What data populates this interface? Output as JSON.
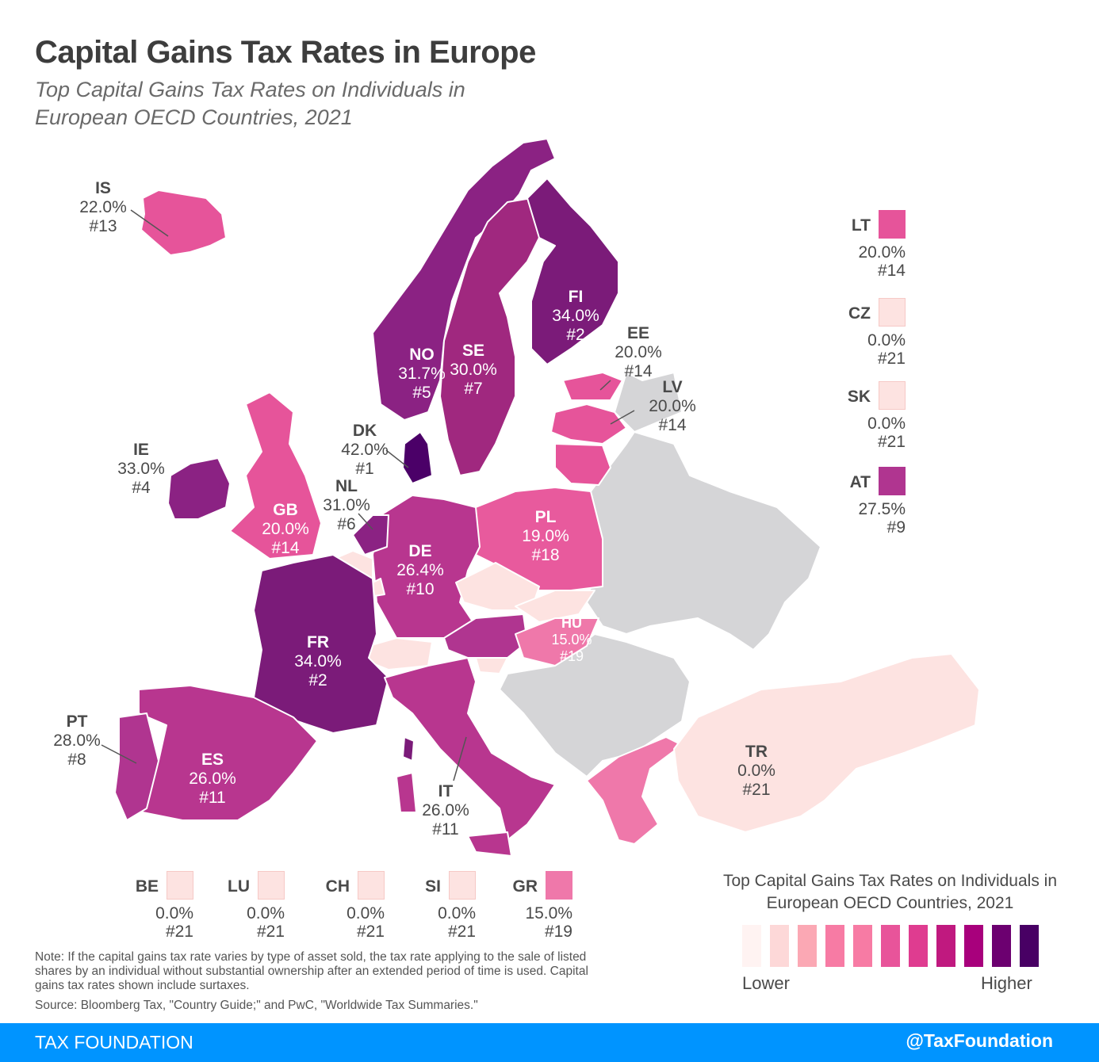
{
  "header": {
    "title": "Capital Gains Tax Rates in Europe",
    "subtitle": "Top Capital Gains Tax Rates on Individuals in European OECD Countries, 2021"
  },
  "colors": {
    "non_oecd": "#d5d5d7",
    "border": "#ffffff"
  },
  "countries": [
    {
      "code": "IS",
      "rate": "22.0%",
      "rank": "#13",
      "color": "#e6549a"
    },
    {
      "code": "NO",
      "rate": "31.7%",
      "rank": "#5",
      "color": "#8b2283"
    },
    {
      "code": "SE",
      "rate": "30.0%",
      "rank": "#7",
      "color": "#a0287f"
    },
    {
      "code": "FI",
      "rate": "34.0%",
      "rank": "#2",
      "color": "#7b1b79"
    },
    {
      "code": "EE",
      "rate": "20.0%",
      "rank": "#14",
      "color": "#e6549a"
    },
    {
      "code": "LV",
      "rate": "20.0%",
      "rank": "#14",
      "color": "#e6549a"
    },
    {
      "code": "DK",
      "rate": "42.0%",
      "rank": "#1",
      "color": "#4b0068"
    },
    {
      "code": "IE",
      "rate": "33.0%",
      "rank": "#4",
      "color": "#8b2283"
    },
    {
      "code": "NL",
      "rate": "31.0%",
      "rank": "#6",
      "color": "#8b2283"
    },
    {
      "code": "GB",
      "rate": "20.0%",
      "rank": "#14",
      "color": "#e6549a"
    },
    {
      "code": "PL",
      "rate": "19.0%",
      "rank": "#18",
      "color": "#e85a9d"
    },
    {
      "code": "DE",
      "rate": "26.4%",
      "rank": "#10",
      "color": "#b8368f"
    },
    {
      "code": "FR",
      "rate": "34.0%",
      "rank": "#2",
      "color": "#7b1b79"
    },
    {
      "code": "HU",
      "rate": "15.0%",
      "rank": "#19",
      "color": "#ef78aa"
    },
    {
      "code": "ES",
      "rate": "26.0%",
      "rank": "#11",
      "color": "#b8368f"
    },
    {
      "code": "PT",
      "rate": "28.0%",
      "rank": "#8",
      "color": "#b03590"
    },
    {
      "code": "IT",
      "rate": "26.0%",
      "rank": "#11",
      "color": "#b8368f"
    },
    {
      "code": "TR",
      "rate": "0.0%",
      "rank": "#21",
      "color": "#fde3e1"
    },
    {
      "code": "LT",
      "rate": "20.0%",
      "rank": "#14",
      "color": "#e6549a"
    },
    {
      "code": "CZ",
      "rate": "0.0%",
      "rank": "#21",
      "color": "#fde3e1"
    },
    {
      "code": "SK",
      "rate": "0.0%",
      "rank": "#21",
      "color": "#fde3e1"
    },
    {
      "code": "AT",
      "rate": "27.5%",
      "rank": "#9",
      "color": "#b03590"
    },
    {
      "code": "BE",
      "rate": "0.0%",
      "rank": "#21",
      "color": "#fde3e1"
    },
    {
      "code": "LU",
      "rate": "0.0%",
      "rank": "#21",
      "color": "#fde3e1"
    },
    {
      "code": "CH",
      "rate": "0.0%",
      "rank": "#21",
      "color": "#fde3e1"
    },
    {
      "code": "SI",
      "rate": "0.0%",
      "rank": "#21",
      "color": "#fde3e1"
    },
    {
      "code": "GR",
      "rate": "15.0%",
      "rank": "#19",
      "color": "#ef78aa"
    }
  ],
  "legend": {
    "title": "Top Capital Gains Tax Rates on Individuals in European OECD Countries, 2021",
    "low_label": "Lower",
    "high_label": "Higher",
    "scale": [
      "#fff3f2",
      "#fdd8d8",
      "#fba8b4",
      "#f77ba4",
      "#f77ba4",
      "#e8549a",
      "#df3c90",
      "#c0197f",
      "#a8007c",
      "#6c0070",
      "#480064"
    ]
  },
  "note": "Note: If the capital gains tax rate varies by type of asset sold, the tax rate applying to the sale of listed shares by an individual without substantial ownership after an extended period of time is used. Capital gains tax rates shown include surtaxes.",
  "source": "Source: Bloomberg Tax, \"Country Guide;\" and PwC, \"Worldwide Tax Summaries.\"",
  "footer": {
    "brand": "TAX FOUNDATION",
    "handle": "@TaxFoundation"
  }
}
